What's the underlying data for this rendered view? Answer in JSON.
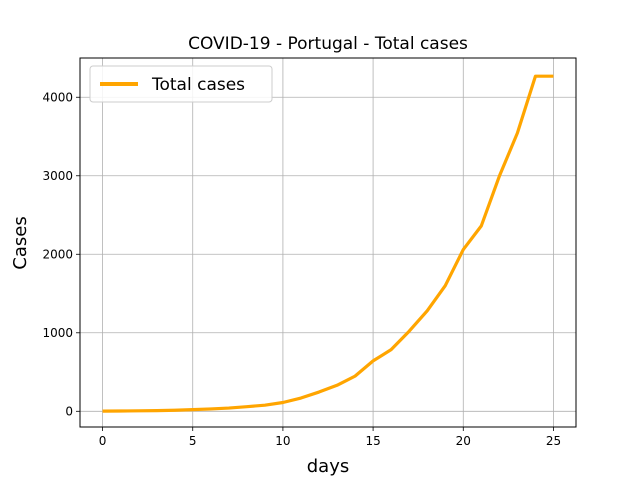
{
  "chart_data": {
    "type": "line",
    "title": "COVID-19 - Portugal - Total cases",
    "xlabel": "days",
    "ylabel": "Cases",
    "xlim": [
      -1.25,
      26.25
    ],
    "ylim": [
      -200,
      4500
    ],
    "xticks": [
      0,
      5,
      10,
      15,
      20,
      25
    ],
    "yticks": [
      0,
      1000,
      2000,
      3000,
      4000
    ],
    "grid": true,
    "legend_position": "top-left",
    "series": [
      {
        "name": "Total cases",
        "color": "#ffa500",
        "x": [
          0,
          1,
          2,
          3,
          4,
          5,
          6,
          7,
          8,
          9,
          10,
          11,
          12,
          13,
          14,
          15,
          16,
          17,
          18,
          19,
          20,
          21,
          22,
          23,
          24,
          25
        ],
        "y": [
          2,
          4,
          6,
          9,
          13,
          21,
          30,
          41,
          59,
          78,
          112,
          169,
          245,
          331,
          448,
          642,
          785,
          1020,
          1280,
          1600,
          2060,
          2362,
          2995,
          3544,
          4268,
          4268
        ]
      }
    ]
  }
}
